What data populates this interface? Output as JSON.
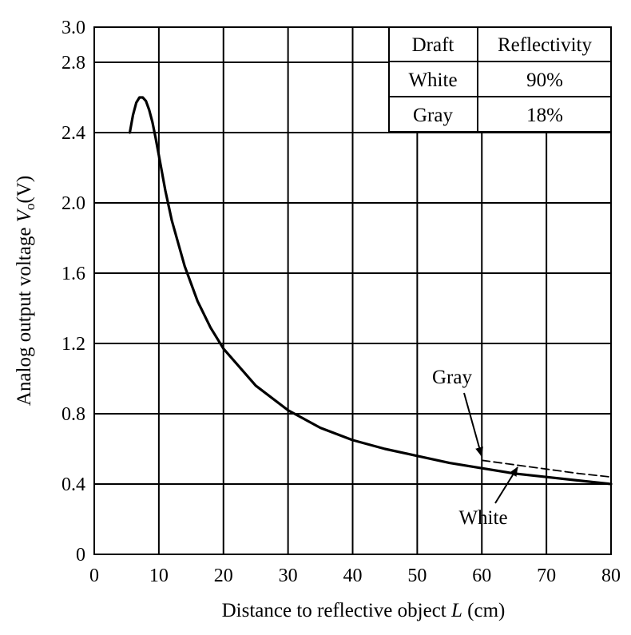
{
  "chart_data": {
    "type": "line",
    "title": "",
    "xlabel_main": "Distance to reflective object ",
    "xlabel_var": "L",
    "xlabel_unit": " (cm)",
    "ylabel_main": "Analog output voltage ",
    "ylabel_var": "V",
    "ylabel_sub": "o",
    "ylabel_unit": "(V)",
    "xlim": [
      0,
      80
    ],
    "ylim": [
      0,
      3.0
    ],
    "grid": true,
    "x_ticks": [
      0,
      10,
      20,
      30,
      40,
      50,
      60,
      70,
      80
    ],
    "x_tick_labels": [
      "0",
      "10",
      "20",
      "30",
      "40",
      "50",
      "60",
      "70",
      "80"
    ],
    "y_ticks": [
      0,
      0.4,
      0.8,
      1.2,
      1.6,
      2.0,
      2.4,
      2.8,
      3.0
    ],
    "y_tick_labels": [
      "0",
      "0.4",
      "0.8",
      "1.2",
      "1.6",
      "2.0",
      "2.4",
      "2.8",
      "3.0"
    ],
    "series": [
      {
        "name": "White",
        "style": "solid",
        "x": [
          5.5,
          6,
          6.5,
          7,
          7.5,
          8,
          8.5,
          9,
          9.5,
          10,
          11,
          12,
          14,
          16,
          18,
          20,
          25,
          30,
          35,
          40,
          45,
          50,
          55,
          60,
          65,
          70,
          75,
          80
        ],
        "y": [
          2.4,
          2.5,
          2.57,
          2.6,
          2.6,
          2.58,
          2.53,
          2.46,
          2.37,
          2.27,
          2.07,
          1.9,
          1.64,
          1.44,
          1.29,
          1.17,
          0.96,
          0.82,
          0.72,
          0.65,
          0.6,
          0.56,
          0.52,
          0.49,
          0.46,
          0.44,
          0.42,
          0.4
        ]
      },
      {
        "name": "Gray",
        "style": "dashed",
        "x": [
          60,
          65,
          70,
          75,
          80
        ],
        "y": [
          0.535,
          0.51,
          0.485,
          0.46,
          0.44
        ]
      }
    ],
    "legend_table": {
      "headers": [
        "Draft",
        "Reflectivity"
      ],
      "rows": [
        [
          "White",
          "90%"
        ],
        [
          "Gray",
          "18%"
        ]
      ]
    },
    "annotations": [
      {
        "text": "Gray",
        "points_to": [
          60,
          0.535
        ]
      },
      {
        "text": "White",
        "points_to": [
          65,
          0.47
        ]
      }
    ]
  }
}
